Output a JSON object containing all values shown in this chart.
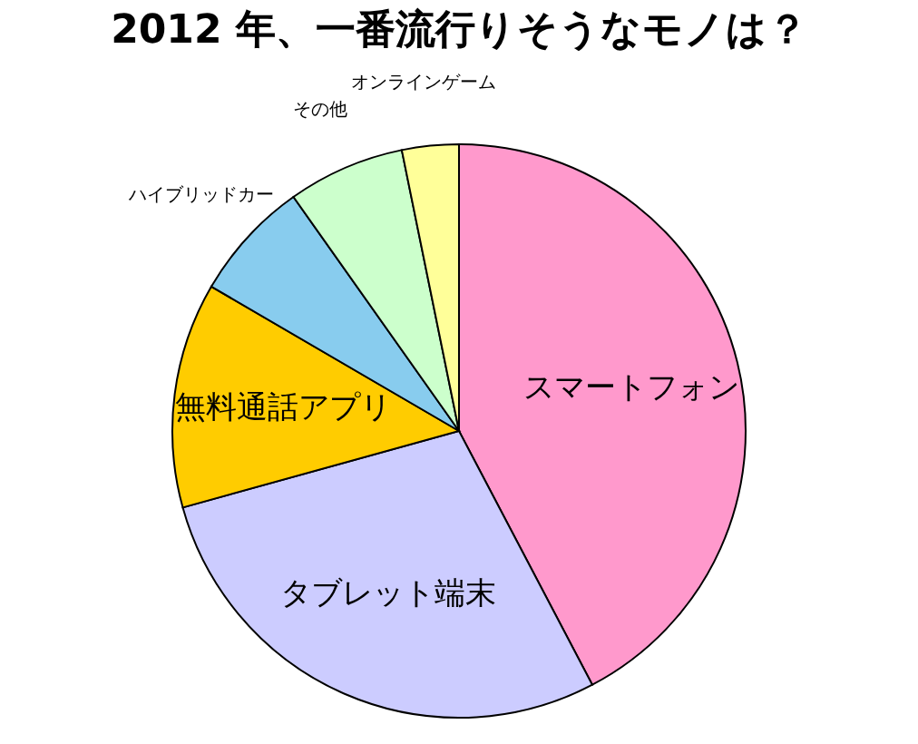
{
  "chart_data": {
    "type": "pie",
    "title": "2012 年、一番流行りそうなモノは？",
    "categories": [
      "スマートフォン",
      "タブレット端末",
      "無料通話アプリ",
      "ハイブリッドカー",
      "その他",
      "オンラインゲーム"
    ],
    "values": [
      42.3,
      28.4,
      12.7,
      6.8,
      6.6,
      3.2
    ],
    "colors": [
      "#ff99cc",
      "#ccccff",
      "#ffcc00",
      "#88ccee",
      "#ccffcc",
      "#ffff99"
    ],
    "legend": false
  }
}
